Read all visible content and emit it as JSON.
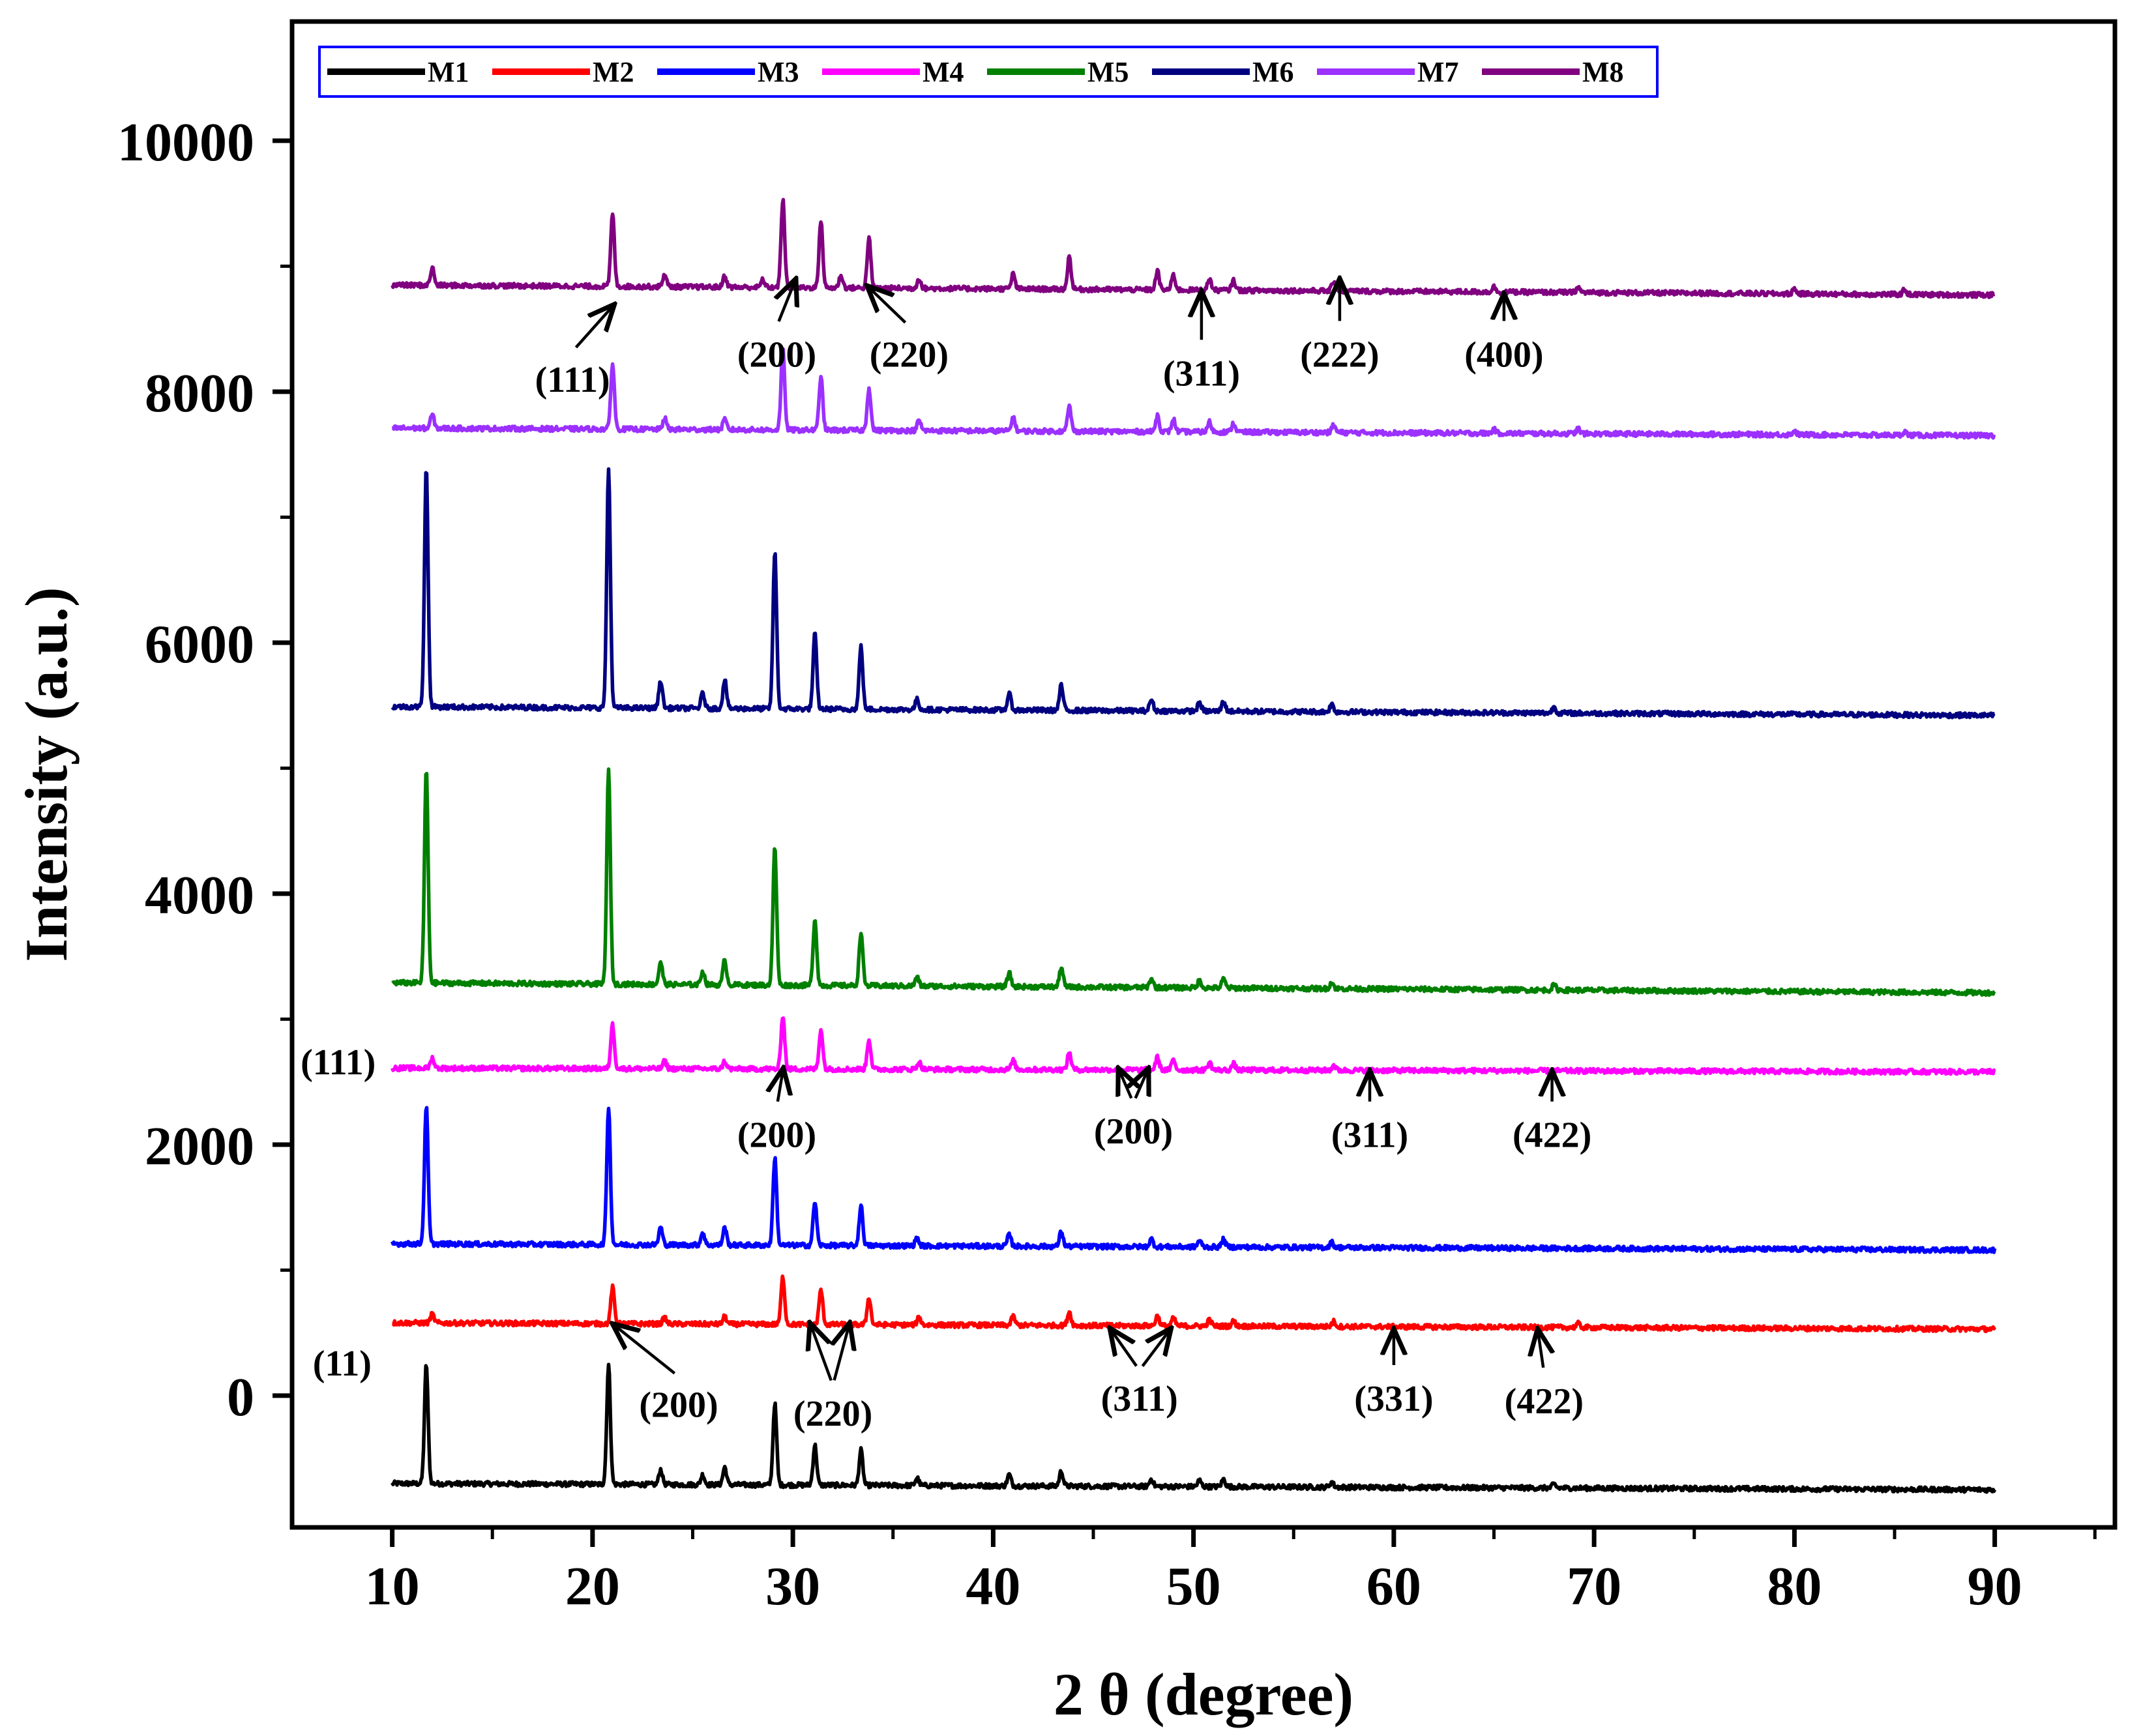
{
  "chart_data": {
    "type": "line",
    "title": "",
    "xlabel": "2 θ (degree)",
    "ylabel": "Intensity (a.u.)",
    "xlim": [
      5,
      96
    ],
    "ylim": [
      -1050,
      10950
    ],
    "xticks": [
      10,
      20,
      30,
      40,
      50,
      60,
      70,
      80,
      90
    ],
    "yticks": [
      0,
      2000,
      4000,
      6000,
      8000,
      10000
    ],
    "xtick_labels": [
      "10",
      "20",
      "30",
      "40",
      "50",
      "60",
      "70",
      "80",
      "90"
    ],
    "ytick_labels": [
      "0",
      "2000",
      "4000",
      "6000",
      "8000",
      "10000"
    ],
    "grid": false,
    "legend_position": "top",
    "series": [
      {
        "name": "M1",
        "color": "#000000",
        "baseline": -700,
        "tail": -750,
        "peaks": [
          [
            11.7,
            950
          ],
          [
            20.8,
            950
          ],
          [
            23.4,
            120
          ],
          [
            25.5,
            80
          ],
          [
            26.6,
            140
          ],
          [
            29.1,
            650
          ],
          [
            31.1,
            320
          ],
          [
            33.4,
            280
          ],
          [
            36.2,
            60
          ],
          [
            40.8,
            90
          ],
          [
            43.4,
            120
          ],
          [
            47.9,
            60
          ],
          [
            50.3,
            50
          ],
          [
            51.5,
            60
          ],
          [
            56.9,
            40
          ],
          [
            68.0,
            30
          ]
        ]
      },
      {
        "name": "M2",
        "color": "#ff0000",
        "baseline": 580,
        "tail": 530,
        "peaks": [
          [
            12.0,
            70
          ],
          [
            21.0,
            290
          ],
          [
            23.6,
            50
          ],
          [
            26.6,
            60
          ],
          [
            29.5,
            380
          ],
          [
            31.4,
            280
          ],
          [
            33.8,
            220
          ],
          [
            36.3,
            60
          ],
          [
            41.0,
            70
          ],
          [
            43.8,
            110
          ],
          [
            48.2,
            80
          ],
          [
            49.0,
            60
          ],
          [
            50.8,
            50
          ],
          [
            52.0,
            40
          ],
          [
            57.0,
            40
          ],
          [
            69.2,
            30
          ]
        ]
      },
      {
        "name": "M3",
        "color": "#0000ff",
        "baseline": 1210,
        "tail": 1160,
        "peaks": [
          [
            11.7,
            1100
          ],
          [
            20.8,
            1100
          ],
          [
            23.4,
            140
          ],
          [
            25.5,
            100
          ],
          [
            26.6,
            140
          ],
          [
            29.1,
            700
          ],
          [
            31.1,
            350
          ],
          [
            33.4,
            320
          ],
          [
            36.2,
            60
          ],
          [
            40.8,
            90
          ],
          [
            43.4,
            120
          ],
          [
            47.9,
            60
          ],
          [
            50.3,
            50
          ],
          [
            51.5,
            60
          ],
          [
            56.9,
            40
          ]
        ]
      },
      {
        "name": "M4",
        "color": "#ff00ff",
        "baseline": 2610,
        "tail": 2580,
        "peaks": [
          [
            12.0,
            80
          ],
          [
            21.0,
            350
          ],
          [
            23.6,
            60
          ],
          [
            26.6,
            60
          ],
          [
            29.5,
            430
          ],
          [
            31.4,
            320
          ],
          [
            33.8,
            240
          ],
          [
            36.3,
            60
          ],
          [
            41.0,
            70
          ],
          [
            43.8,
            140
          ],
          [
            48.2,
            100
          ],
          [
            49.0,
            80
          ],
          [
            50.8,
            60
          ],
          [
            52.0,
            50
          ],
          [
            57.0,
            40
          ]
        ]
      },
      {
        "name": "M5",
        "color": "#008000",
        "baseline": 3290,
        "tail": 3210,
        "peaks": [
          [
            11.7,
            1700
          ],
          [
            20.8,
            1700
          ],
          [
            23.4,
            180
          ],
          [
            25.5,
            110
          ],
          [
            26.6,
            200
          ],
          [
            29.1,
            1100
          ],
          [
            31.1,
            530
          ],
          [
            33.4,
            430
          ],
          [
            36.2,
            70
          ],
          [
            40.8,
            110
          ],
          [
            43.4,
            160
          ],
          [
            47.9,
            70
          ],
          [
            50.3,
            60
          ],
          [
            51.5,
            70
          ],
          [
            56.9,
            50
          ],
          [
            68.0,
            40
          ]
        ]
      },
      {
        "name": "M6",
        "color": "#000080",
        "baseline": 5490,
        "tail": 5420,
        "peaks": [
          [
            11.7,
            1900
          ],
          [
            20.8,
            1900
          ],
          [
            23.4,
            220
          ],
          [
            25.5,
            120
          ],
          [
            26.6,
            230
          ],
          [
            29.1,
            1250
          ],
          [
            31.1,
            600
          ],
          [
            33.4,
            500
          ],
          [
            36.2,
            80
          ],
          [
            40.8,
            130
          ],
          [
            43.4,
            200
          ],
          [
            47.9,
            90
          ],
          [
            50.3,
            70
          ],
          [
            51.5,
            80
          ],
          [
            56.9,
            60
          ],
          [
            68.0,
            50
          ]
        ]
      },
      {
        "name": "M7",
        "color": "#9b30ff",
        "baseline": 7710,
        "tail": 7650,
        "peaks": [
          [
            12.0,
            110
          ],
          [
            21.0,
            520
          ],
          [
            23.6,
            90
          ],
          [
            26.6,
            80
          ],
          [
            29.5,
            640
          ],
          [
            31.4,
            430
          ],
          [
            33.8,
            340
          ],
          [
            36.3,
            80
          ],
          [
            41.0,
            110
          ],
          [
            43.8,
            200
          ],
          [
            48.2,
            130
          ],
          [
            49.0,
            100
          ],
          [
            50.8,
            80
          ],
          [
            52.0,
            70
          ],
          [
            57.0,
            60
          ],
          [
            65.0,
            30
          ],
          [
            69.2,
            40
          ],
          [
            80.0,
            30
          ],
          [
            85.5,
            30
          ]
        ]
      },
      {
        "name": "M8",
        "color": "#800080",
        "baseline": 8850,
        "tail": 8770,
        "peaks": [
          [
            12.0,
            140
          ],
          [
            21.0,
            580
          ],
          [
            23.6,
            100
          ],
          [
            26.6,
            90
          ],
          [
            28.5,
            60
          ],
          [
            29.5,
            700
          ],
          [
            31.4,
            540
          ],
          [
            32.4,
            100
          ],
          [
            33.8,
            400
          ],
          [
            36.3,
            80
          ],
          [
            41.0,
            120
          ],
          [
            43.8,
            260
          ],
          [
            48.2,
            150
          ],
          [
            49.0,
            120
          ],
          [
            50.8,
            90
          ],
          [
            52.0,
            80
          ],
          [
            57.0,
            80
          ],
          [
            65.0,
            40
          ],
          [
            69.2,
            40
          ],
          [
            80.0,
            40
          ],
          [
            85.5,
            40
          ]
        ]
      }
    ],
    "annotations": [
      {
        "text": "(111)",
        "tx": 19.0,
        "ty": 8000,
        "ax": 21.0,
        "ay": 8680
      },
      {
        "text": "(200)",
        "tx": 29.2,
        "ty": 8200,
        "ax": 30.1,
        "ay": 8880
      },
      {
        "text": "(220)",
        "tx": 35.8,
        "ty": 8200,
        "ax": 33.8,
        "ay": 8830
      },
      {
        "text": "(311)",
        "tx": 50.4,
        "ty": 8050,
        "ax": 50.4,
        "ay": 8780
      },
      {
        "text": "(222)",
        "tx": 57.3,
        "ty": 8200,
        "ax": 57.3,
        "ay": 8880
      },
      {
        "text": "(400)",
        "tx": 65.5,
        "ty": 8200,
        "ax": 65.5,
        "ay": 8760
      },
      {
        "text": "(111)",
        "tx": 7.3,
        "ty": 2560
      },
      {
        "text": "(200)",
        "tx": 29.2,
        "ty": 1980,
        "ax": 29.5,
        "ay": 2590
      },
      {
        "text": "(200)",
        "tx": 47.0,
        "ty": 2010,
        "ax": 46.3,
        "ay": 2590
      },
      {
        "text": "(200)",
        "tx": 47.0,
        "ty": 2010,
        "ax": 47.7,
        "ay": 2590,
        "hide_text": true
      },
      {
        "text": "(311)",
        "tx": 58.8,
        "ty": 1980,
        "ax": 58.8,
        "ay": 2570
      },
      {
        "text": "(422)",
        "tx": 67.9,
        "ty": 1980,
        "ax": 67.9,
        "ay": 2570
      },
      {
        "text": "(11)",
        "tx": 7.5,
        "ty": 160
      },
      {
        "text": "(200)",
        "tx": 24.3,
        "ty": -170,
        "ax": 21.1,
        "ay": 560
      },
      {
        "text": "(220)",
        "tx": 32.0,
        "ty": -240,
        "ax": 30.9,
        "ay": 560
      },
      {
        "text": "(220)",
        "tx": 32.0,
        "ty": -240,
        "ax": 32.8,
        "ay": 560,
        "hide_text": true
      },
      {
        "text": "(311)",
        "tx": 47.3,
        "ty": -120,
        "ax": 45.9,
        "ay": 520
      },
      {
        "text": "(311)",
        "tx": 47.3,
        "ty": -120,
        "ax": 48.8,
        "ay": 520,
        "hide_text": true
      },
      {
        "text": "(331)",
        "tx": 60.0,
        "ty": -120,
        "ax": 60.0,
        "ay": 510
      },
      {
        "text": "(422)",
        "tx": 67.5,
        "ty": -140,
        "ax": 67.2,
        "ay": 510
      }
    ]
  }
}
